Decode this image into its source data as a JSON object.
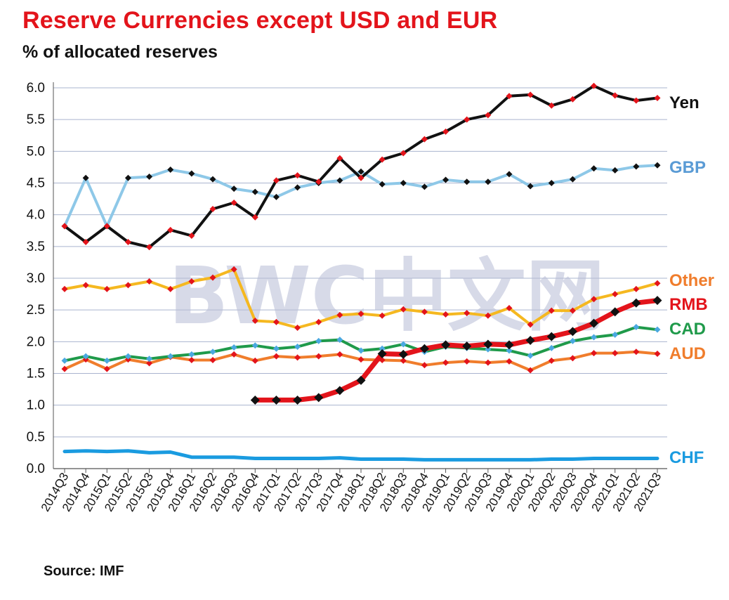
{
  "title": "Reserve Currencies  except USD and  EUR",
  "subtitle": "% of allocated reserves",
  "source": "Source: IMF",
  "watermark": "BWC中文网",
  "chart_data": {
    "type": "line",
    "title": "Reserve Currencies  except USD and  EUR",
    "ylabel": "% of allocated reserves",
    "xlabel": "",
    "ylim": [
      0,
      6.0
    ],
    "yticks": [
      "0.0",
      "0.5",
      "1.0",
      "1.5",
      "2.0",
      "2.5",
      "3.0",
      "3.5",
      "4.0",
      "4.5",
      "5.0",
      "5.5",
      "6.0"
    ],
    "grid": true,
    "categories": [
      "2014Q3",
      "2014Q4",
      "2015Q1",
      "2015Q2",
      "2015Q3",
      "2015Q4",
      "2016Q1",
      "2016Q2",
      "2016Q3",
      "2016Q4",
      "2017Q1",
      "2017Q2",
      "2017Q3",
      "2017Q4",
      "2018Q1",
      "2018Q2",
      "2018Q3",
      "2018Q4",
      "2019Q1",
      "2019Q2",
      "2019Q3",
      "2019Q4",
      "2020Q1",
      "2020Q2",
      "2020Q3",
      "2020Q4",
      "2021Q1",
      "2021Q2",
      "2021Q3"
    ],
    "series": [
      {
        "name": "GBP",
        "label": "GBP",
        "color": "#8ec8e8",
        "marker_color": "#111111",
        "values": [
          3.82,
          4.58,
          3.82,
          4.58,
          4.6,
          4.71,
          4.65,
          4.56,
          4.41,
          4.36,
          4.28,
          4.43,
          4.5,
          4.54,
          4.68,
          4.48,
          4.5,
          4.44,
          4.55,
          4.52,
          4.52,
          4.64,
          4.45,
          4.5,
          4.56,
          4.73,
          4.7,
          4.76,
          4.78
        ]
      },
      {
        "name": "Yen",
        "label": "Yen",
        "color": "#111111",
        "marker_color": "#e3141b",
        "values": [
          3.82,
          3.57,
          3.82,
          3.57,
          3.49,
          3.76,
          3.67,
          4.09,
          4.19,
          3.96,
          4.54,
          4.62,
          4.52,
          4.89,
          4.58,
          4.87,
          4.97,
          5.19,
          5.31,
          5.5,
          5.57,
          5.87,
          5.89,
          5.72,
          5.82,
          6.03,
          5.88,
          5.8,
          5.84
        ]
      },
      {
        "name": "Other",
        "label": "Other",
        "color": "#f5b820",
        "marker_color": "#e3141b",
        "values": [
          2.83,
          2.89,
          2.83,
          2.89,
          2.95,
          2.83,
          2.95,
          3.01,
          3.14,
          2.33,
          2.31,
          2.22,
          2.31,
          2.42,
          2.44,
          2.41,
          2.51,
          2.47,
          2.43,
          2.45,
          2.41,
          2.53,
          2.27,
          2.49,
          2.49,
          2.67,
          2.75,
          2.83,
          2.92
        ]
      },
      {
        "name": "RMB",
        "label": "RMB",
        "color": "#e3141b",
        "marker_color": "#111111",
        "values": [
          null,
          null,
          null,
          null,
          null,
          null,
          null,
          null,
          null,
          1.08,
          1.08,
          1.08,
          1.12,
          1.23,
          1.39,
          1.81,
          1.8,
          1.89,
          1.95,
          1.93,
          1.96,
          1.95,
          2.02,
          2.08,
          2.16,
          2.29,
          2.47,
          2.61,
          2.65
        ]
      },
      {
        "name": "CAD",
        "label": "CAD",
        "color": "#1f9a4a",
        "marker_color": "#4aa8e0",
        "values": [
          1.7,
          1.77,
          1.7,
          1.77,
          1.73,
          1.77,
          1.8,
          1.84,
          1.91,
          1.94,
          1.89,
          1.92,
          2.01,
          2.03,
          1.86,
          1.89,
          1.96,
          1.84,
          1.92,
          1.9,
          1.88,
          1.86,
          1.78,
          1.9,
          2.01,
          2.07,
          2.11,
          2.23,
          2.19
        ]
      },
      {
        "name": "AUD",
        "label": "AUD",
        "color": "#f07d2c",
        "marker_color": "#e3141b",
        "values": [
          1.57,
          1.72,
          1.57,
          1.72,
          1.66,
          1.76,
          1.71,
          1.71,
          1.8,
          1.7,
          1.77,
          1.75,
          1.77,
          1.8,
          1.72,
          1.71,
          1.7,
          1.63,
          1.67,
          1.69,
          1.67,
          1.69,
          1.55,
          1.7,
          1.74,
          1.82,
          1.82,
          1.84,
          1.81
        ]
      },
      {
        "name": "CHF",
        "label": "CHF",
        "color": "#1a9be0",
        "values": [
          0.27,
          0.28,
          0.27,
          0.28,
          0.25,
          0.26,
          0.18,
          0.18,
          0.18,
          0.16,
          0.16,
          0.16,
          0.16,
          0.17,
          0.15,
          0.15,
          0.15,
          0.14,
          0.14,
          0.14,
          0.14,
          0.14,
          0.14,
          0.15,
          0.15,
          0.16,
          0.16,
          0.16,
          0.16
        ]
      }
    ]
  }
}
